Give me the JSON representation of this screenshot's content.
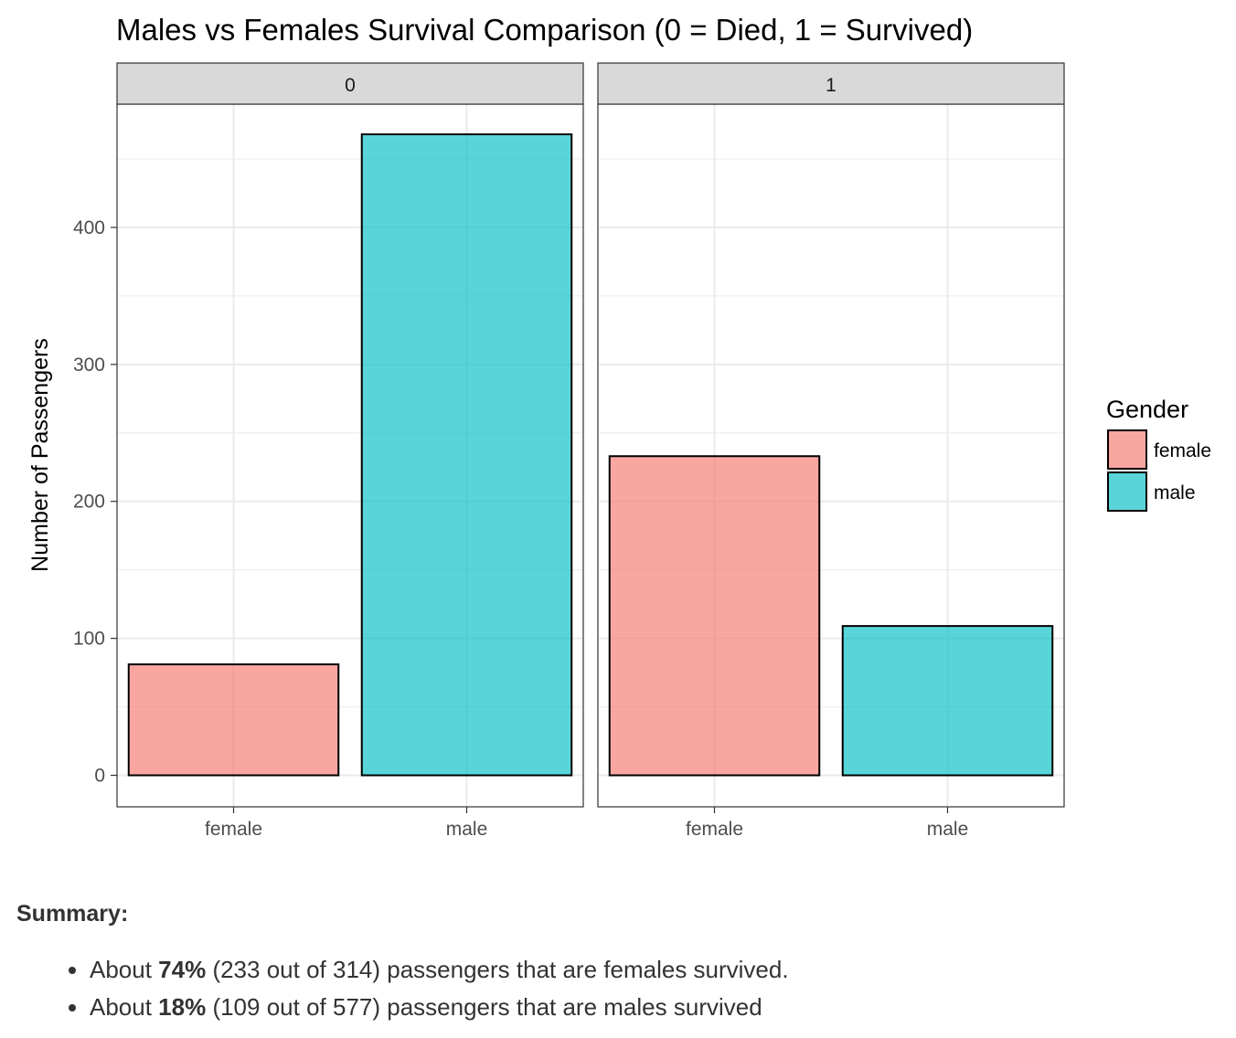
{
  "chart_data": {
    "type": "bar",
    "title": "Males vs Females Survival Comparison (0 = Died, 1 = Survived)",
    "xlabel": "",
    "ylabel": "Number of Passengers",
    "ylim": [
      -23,
      490
    ],
    "yticks": [
      0,
      100,
      200,
      300,
      400
    ],
    "grid": true,
    "categories": [
      "female",
      "male"
    ],
    "facets": [
      {
        "label": "0",
        "values": [
          81,
          468
        ]
      },
      {
        "label": "1",
        "values": [
          233,
          109
        ]
      }
    ],
    "legend": {
      "title": "Gender",
      "placement": "right",
      "entries": [
        {
          "label": "female",
          "color": "#F8766D"
        },
        {
          "label": "male",
          "color": "#00BFC4"
        }
      ]
    },
    "colors": {
      "female": "#F8766D",
      "male": "#00BFC4",
      "strip": "#D9D9D9",
      "grid": "#EBEBEB"
    }
  },
  "summary": {
    "heading": "Summary:",
    "items": [
      {
        "prefix": "About ",
        "bold": "74%",
        "rest": " (233 out of 314) passengers that are females survived."
      },
      {
        "prefix": "About ",
        "bold": "18%",
        "rest": " (109 out of 577) passengers that are males survived"
      }
    ]
  }
}
